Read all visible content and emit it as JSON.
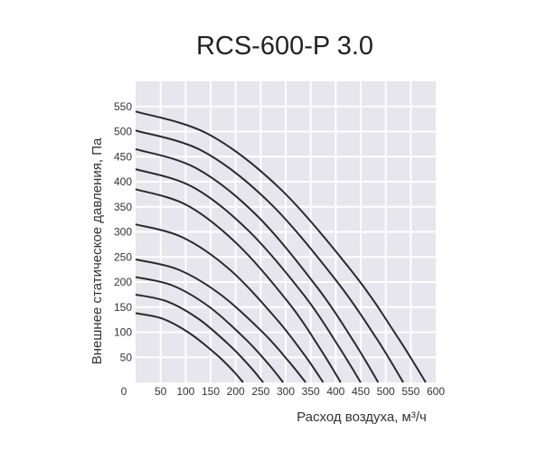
{
  "chart_data": {
    "type": "line",
    "title": "RCS-600-P 3.0",
    "xlabel": "Расход воздуха, м³/ч",
    "ylabel": "Внешнее статическое давления, Па",
    "xlim": [
      0,
      600
    ],
    "ylim": [
      0,
      600
    ],
    "xticks": [
      0,
      50,
      100,
      150,
      200,
      250,
      300,
      350,
      400,
      450,
      500,
      550,
      600
    ],
    "yticks": [
      50,
      100,
      150,
      200,
      250,
      300,
      350,
      400,
      450,
      500,
      550
    ],
    "grid": true,
    "background": "#e6e6ec",
    "grid_color": "#ffffff",
    "line_color": "#2a2a2e",
    "series": [
      {
        "x": [
          0,
          145,
          290,
          435,
          522,
          580
        ],
        "y": [
          540,
          495,
          385,
          218,
          93,
          0
        ]
      },
      {
        "x": [
          0,
          134,
          268,
          401,
          482,
          535
        ],
        "y": [
          502,
          461,
          358,
          203,
          87,
          0
        ]
      },
      {
        "x": [
          0,
          121,
          243,
          364,
          437,
          485
        ],
        "y": [
          465,
          427,
          332,
          188,
          80,
          0
        ]
      },
      {
        "x": [
          0,
          113,
          225,
          338,
          405,
          450
        ],
        "y": [
          425,
          390,
          303,
          172,
          73,
          0
        ]
      },
      {
        "x": [
          0,
          103,
          205,
          308,
          369,
          410
        ],
        "y": [
          385,
          353,
          274,
          156,
          67,
          0
        ]
      },
      {
        "x": [
          0,
          94,
          188,
          281,
          338,
          375
        ],
        "y": [
          315,
          289,
          225,
          127,
          54,
          0
        ]
      },
      {
        "x": [
          0,
          85,
          170,
          255,
          306,
          340
        ],
        "y": [
          245,
          225,
          175,
          99,
          42,
          0
        ]
      },
      {
        "x": [
          0,
          74,
          148,
          221,
          266,
          295
        ],
        "y": [
          210,
          193,
          150,
          85,
          36,
          0
        ]
      },
      {
        "x": [
          0,
          64,
          128,
          191,
          230,
          255
        ],
        "y": [
          175,
          161,
          125,
          71,
          30,
          0
        ]
      },
      {
        "x": [
          0,
          54,
          108,
          161,
          194,
          215
        ],
        "y": [
          138,
          127,
          98,
          56,
          24,
          0
        ]
      }
    ]
  }
}
